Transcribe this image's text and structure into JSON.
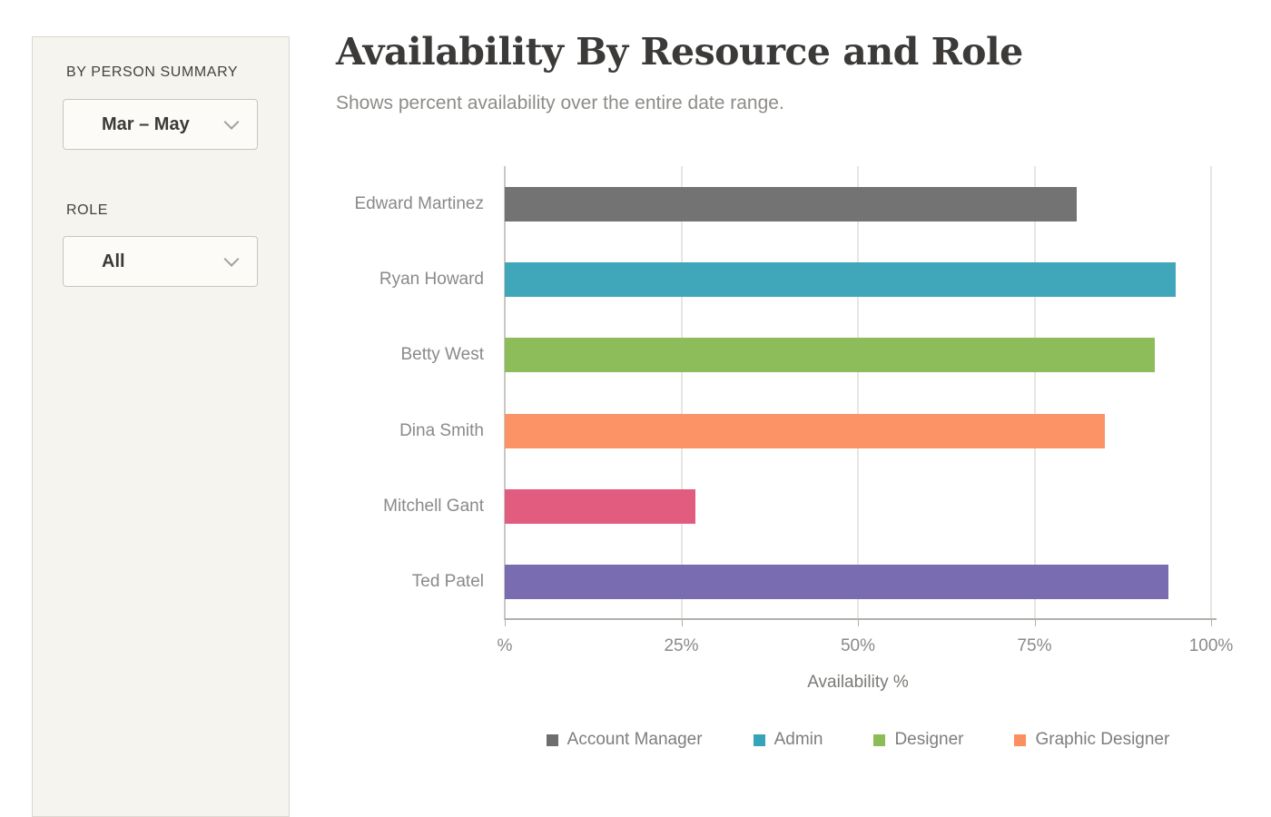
{
  "sidebar": {
    "section_label": "BY PERSON SUMMARY",
    "period_dropdown": {
      "value": "Mar – May"
    },
    "role_label": "ROLE",
    "role_dropdown": {
      "value": "All"
    }
  },
  "header": {
    "title": "Availability By Resource and Role",
    "subtitle": "Shows percent availability over the entire date range."
  },
  "chart_data": {
    "type": "bar",
    "orientation": "horizontal",
    "title": "Availability By Resource and Role",
    "categories": [
      "Edward Martinez",
      "Ryan Howard",
      "Betty West",
      "Dina Smith",
      "Mitchell Gant",
      "Ted Patel"
    ],
    "values": [
      81,
      95,
      92,
      85,
      27,
      94
    ],
    "bar_colors": [
      "#737373",
      "#3FA7B9",
      "#8DBC5A",
      "#FC9366",
      "#E25C80",
      "#7A6CB0"
    ],
    "xlabel": "Availability %",
    "x_ticks": [
      "%",
      "25%",
      "50%",
      "75%",
      "100%"
    ],
    "xlim": [
      0,
      100
    ],
    "grid": true,
    "legend_position": "bottom",
    "legend": [
      {
        "label": "Account Manager",
        "color": "#6e6e6e"
      },
      {
        "label": "Admin",
        "color": "#35a4b8"
      },
      {
        "label": "Designer",
        "color": "#8cbc55"
      },
      {
        "label": "Graphic Designer",
        "color": "#fb8f5f"
      }
    ],
    "colors": {
      "gridline": "#e8e6e1",
      "zero_line": "#c9c7c2",
      "axis_line": "#b2b0ac",
      "label_text": "#8b8989"
    }
  }
}
